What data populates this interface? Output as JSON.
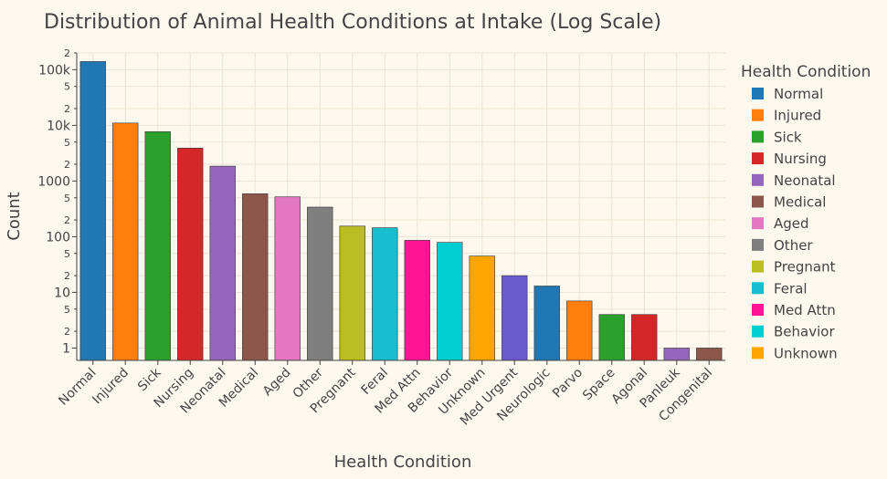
{
  "chart_data": {
    "type": "bar",
    "title": "Distribution of Animal Health Conditions at Intake (Log Scale)",
    "xlabel": "Health Condition",
    "ylabel": "Count",
    "yscale": "log",
    "ylim": [
      0.6,
      200000
    ],
    "major_ticks": [
      {
        "value": 1,
        "label": "1"
      },
      {
        "value": 10,
        "label": "10"
      },
      {
        "value": 100,
        "label": "100"
      },
      {
        "value": 1000,
        "label": "1000"
      },
      {
        "value": 10000,
        "label": "10k"
      },
      {
        "value": 100000,
        "label": "100k"
      }
    ],
    "minor_ticks": [
      {
        "value": 2,
        "label": "2"
      },
      {
        "value": 5,
        "label": "5"
      },
      {
        "value": 20,
        "label": "2"
      },
      {
        "value": 50,
        "label": "5"
      },
      {
        "value": 200,
        "label": "2"
      },
      {
        "value": 500,
        "label": "5"
      },
      {
        "value": 2000,
        "label": "2"
      },
      {
        "value": 5000,
        "label": "5"
      },
      {
        "value": 20000,
        "label": "2"
      },
      {
        "value": 50000,
        "label": "5"
      },
      {
        "value": 200000,
        "label": "2"
      }
    ],
    "grid": true,
    "legend_title": "Health Condition",
    "legend_position": "right",
    "categories": [
      "Normal",
      "Injured",
      "Sick",
      "Nursing",
      "Neonatal",
      "Medical",
      "Aged",
      "Other",
      "Pregnant",
      "Feral",
      "Med Attn",
      "Behavior",
      "Unknown",
      "Med Urgent",
      "Neurologic",
      "Parvo",
      "Space",
      "Agonal",
      "Panleuk",
      "Congenital"
    ],
    "values": [
      140000,
      11000,
      7700,
      3900,
      1850,
      590,
      520,
      340,
      155,
      145,
      86,
      79,
      45,
      20,
      13,
      7,
      4,
      4,
      1,
      1
    ],
    "colors": [
      "#1f77b4",
      "#ff7f0e",
      "#2ca02c",
      "#d62728",
      "#9467bd",
      "#8c564b",
      "#e377c2",
      "#7f7f7f",
      "#bcbd22",
      "#17becf",
      "#ff1493",
      "#00ced1",
      "#ffa500",
      "#6a5acd",
      "#1f77b4",
      "#ff7f0e",
      "#2ca02c",
      "#d62728",
      "#9467bd",
      "#8c564b"
    ],
    "legend_items": [
      {
        "label": "Normal",
        "color": "#1f77b4"
      },
      {
        "label": "Injured",
        "color": "#ff7f0e"
      },
      {
        "label": "Sick",
        "color": "#2ca02c"
      },
      {
        "label": "Nursing",
        "color": "#d62728"
      },
      {
        "label": "Neonatal",
        "color": "#9467bd"
      },
      {
        "label": "Medical",
        "color": "#8c564b"
      },
      {
        "label": "Aged",
        "color": "#e377c2"
      },
      {
        "label": "Other",
        "color": "#7f7f7f"
      },
      {
        "label": "Pregnant",
        "color": "#bcbd22"
      },
      {
        "label": "Feral",
        "color": "#17becf"
      },
      {
        "label": "Med Attn",
        "color": "#ff1493"
      },
      {
        "label": "Behavior",
        "color": "#00ced1"
      },
      {
        "label": "Unknown",
        "color": "#ffa500"
      }
    ]
  }
}
